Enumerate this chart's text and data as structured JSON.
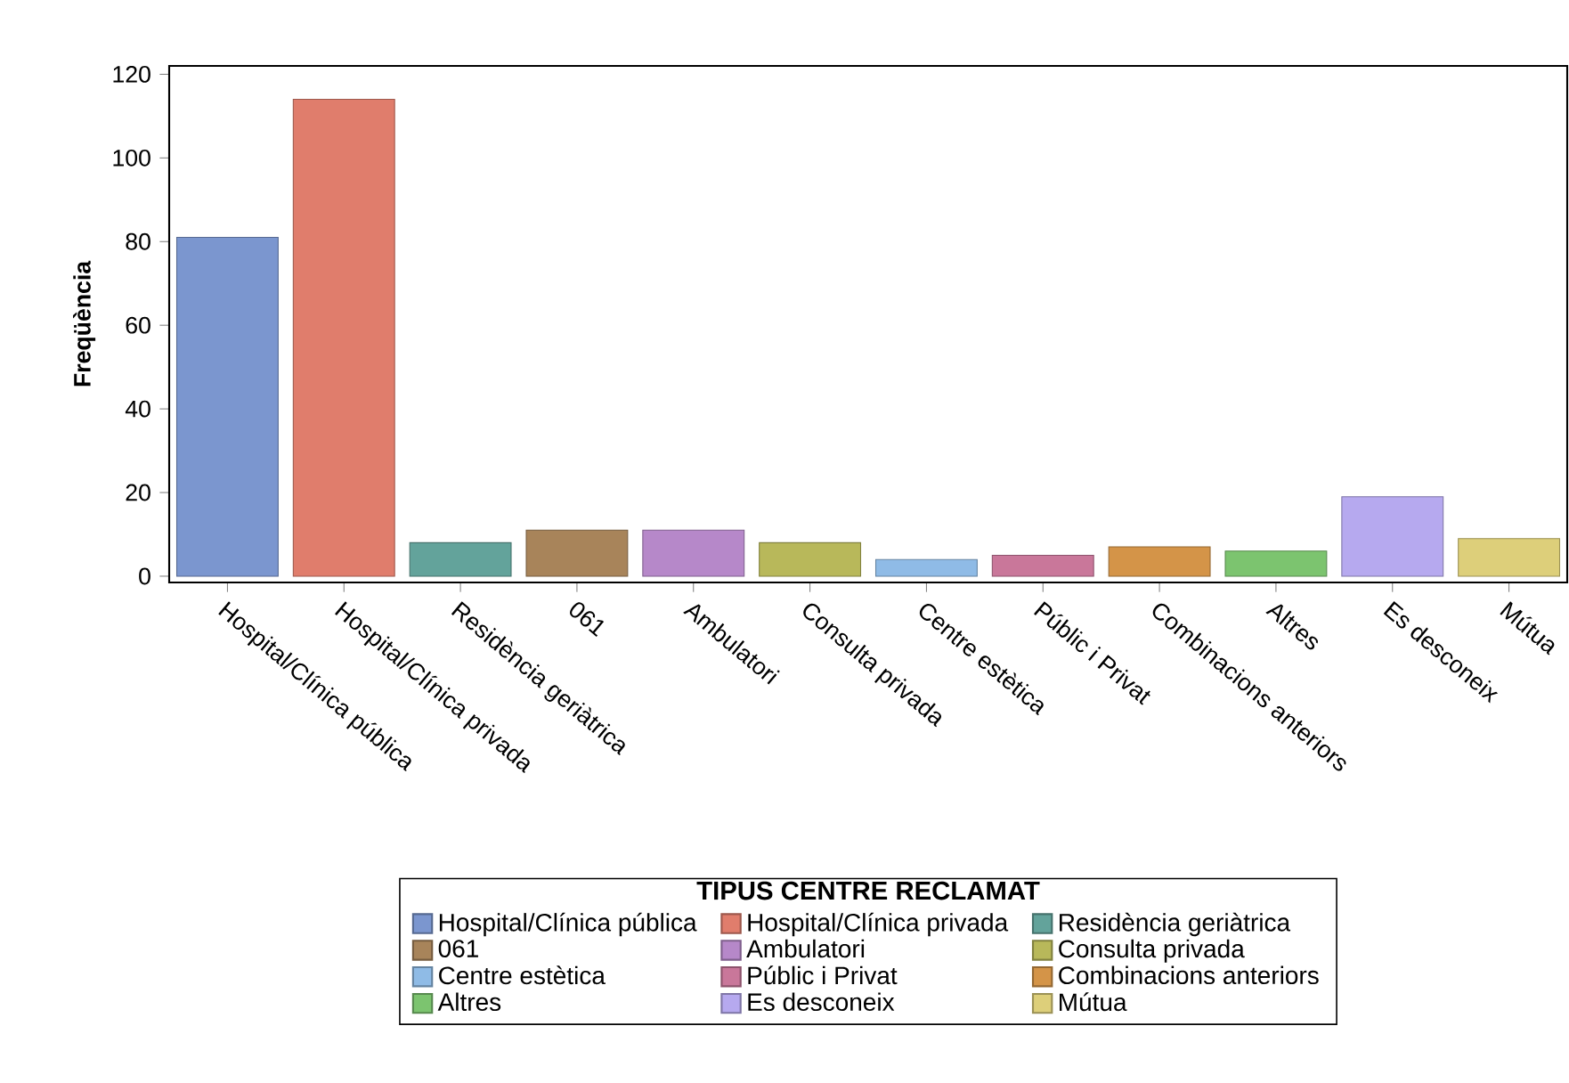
{
  "chart_data": {
    "type": "bar",
    "ylabel": "Freqüència",
    "legend_title": "TIPUS CENTRE RECLAMAT",
    "categories": [
      "Hospital/Clínica pública",
      "Hospital/Clínica privada",
      "Residència geriàtrica",
      "061",
      "Ambulatori",
      "Consulta privada",
      "Centre estètica",
      "Públic i Privat",
      "Combinacions anteriors",
      "Altres",
      "Es desconeix",
      "Mútua"
    ],
    "series": [
      {
        "name": "Hospital/Clínica pública",
        "color": "#7b96cf",
        "values": [
          81,
          null,
          null,
          null,
          null,
          null,
          null,
          null,
          null,
          null,
          null,
          null
        ]
      },
      {
        "name": "Hospital/Clínica privada",
        "color": "#e07d6c",
        "values": [
          null,
          114,
          null,
          null,
          null,
          null,
          null,
          null,
          null,
          null,
          null,
          null
        ]
      },
      {
        "name": "Residència geriàtrica",
        "color": "#63a39b",
        "values": [
          null,
          null,
          8,
          null,
          null,
          null,
          null,
          null,
          null,
          null,
          null,
          null
        ]
      },
      {
        "name": "061",
        "color": "#a8845a",
        "values": [
          null,
          null,
          null,
          11,
          null,
          null,
          null,
          null,
          null,
          null,
          null,
          null
        ]
      },
      {
        "name": "Ambulatori",
        "color": "#b688c9",
        "values": [
          null,
          null,
          null,
          null,
          11,
          null,
          null,
          null,
          null,
          null,
          null,
          null
        ]
      },
      {
        "name": "Consulta privada",
        "color": "#b8b85a",
        "values": [
          null,
          null,
          null,
          null,
          null,
          8,
          null,
          null,
          null,
          null,
          null,
          null
        ]
      },
      {
        "name": "Centre estètica",
        "color": "#8fbbe6",
        "values": [
          null,
          null,
          null,
          null,
          null,
          null,
          4,
          null,
          null,
          null,
          null,
          null
        ]
      },
      {
        "name": "Públic i Privat",
        "color": "#c9779a",
        "values": [
          null,
          null,
          null,
          null,
          null,
          null,
          null,
          5,
          null,
          null,
          null,
          null
        ]
      },
      {
        "name": "Combinacions anteriors",
        "color": "#d49448",
        "values": [
          null,
          null,
          null,
          null,
          null,
          null,
          null,
          null,
          7,
          null,
          null,
          null
        ]
      },
      {
        "name": "Altres",
        "color": "#7cc46f",
        "values": [
          null,
          null,
          null,
          null,
          null,
          null,
          null,
          null,
          null,
          6,
          null,
          null
        ]
      },
      {
        "name": "Es desconeix",
        "color": "#b6a9ef",
        "values": [
          null,
          null,
          null,
          null,
          null,
          null,
          null,
          null,
          null,
          null,
          19,
          null
        ]
      },
      {
        "name": "Mútua",
        "color": "#ddcf7a",
        "values": [
          null,
          null,
          null,
          null,
          null,
          null,
          null,
          null,
          null,
          null,
          null,
          9
        ]
      }
    ],
    "ylim": [
      0,
      122
    ],
    "yticks": [
      0,
      20,
      40,
      60,
      80,
      100,
      120
    ],
    "legend": "bottom"
  }
}
